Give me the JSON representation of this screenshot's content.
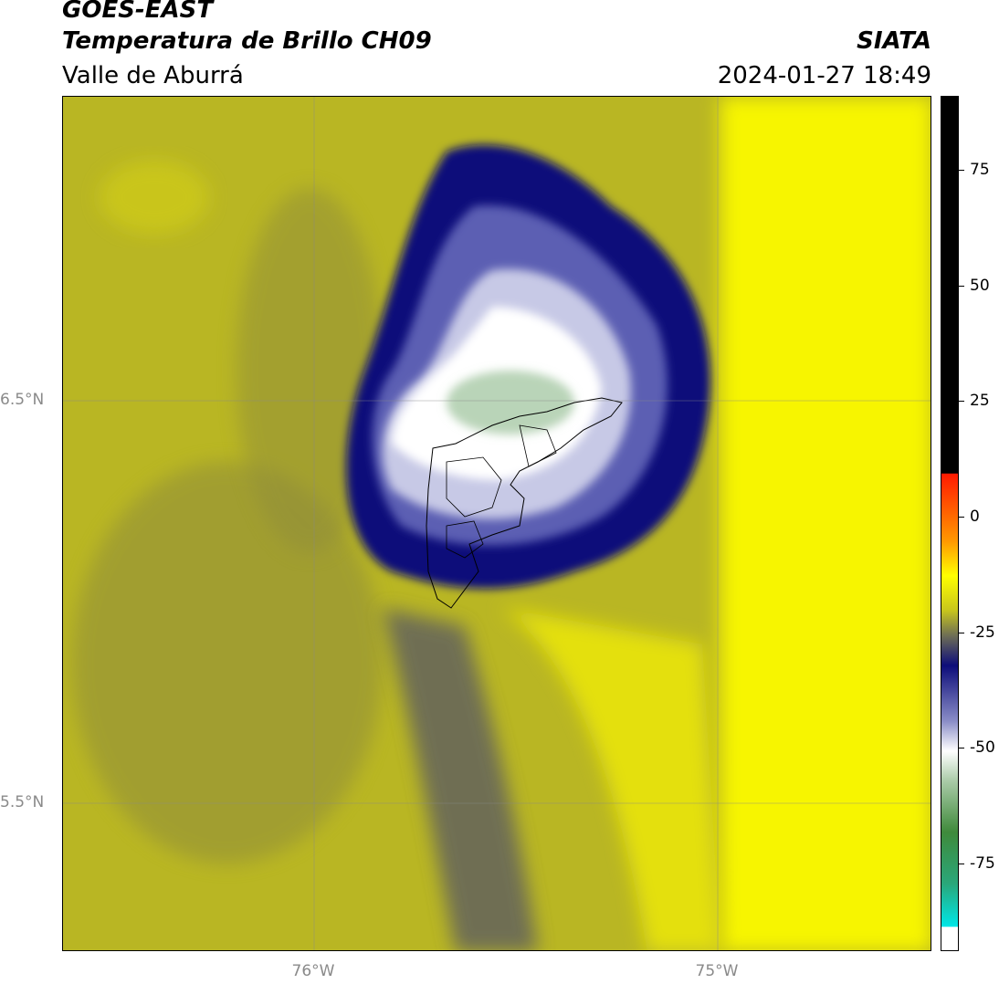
{
  "header": {
    "satellite": "GOES-EAST",
    "product": "Temperatura de Brillo CH09",
    "region": "Valle de Aburrá",
    "org": "SIATA",
    "datetime": "2024-01-27 18:49"
  },
  "map": {
    "lon_labels": [
      "76°W",
      "75°W"
    ],
    "lat_labels": [
      "6.5°N",
      "5.5°N"
    ],
    "gridlines": true
  },
  "colorbar": {
    "ticks": [
      "75",
      "50",
      "25",
      "0",
      "-25",
      "-50",
      "-75"
    ],
    "tick_values": [
      75,
      50,
      25,
      0,
      -25,
      -50,
      -75
    ],
    "range": [
      -94,
      91
    ],
    "colors": {
      "black": "#000000",
      "red": "#ff1a00",
      "orange": "#ff9900",
      "yellow": "#ffff00",
      "olive": "#a7a62a",
      "navy": "#0d0d7a",
      "white": "#ffffff",
      "green": "#3f8a3b",
      "cyan": "#00e6e6"
    }
  }
}
